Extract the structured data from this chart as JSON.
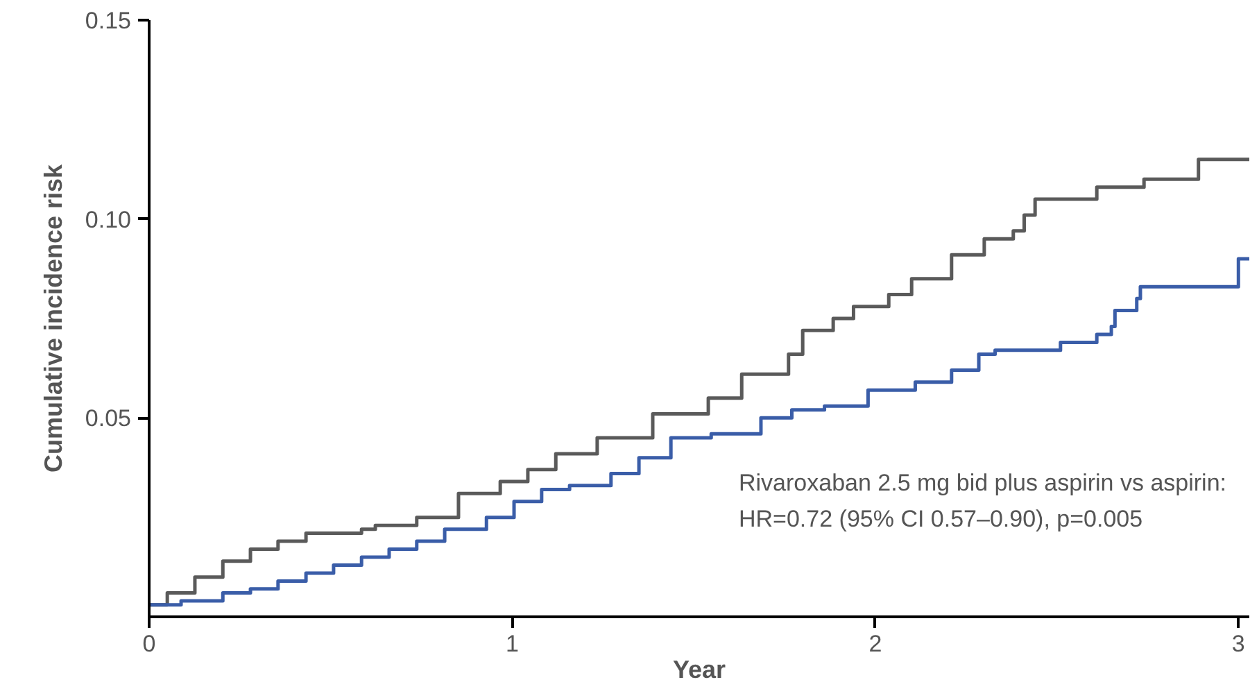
{
  "chart_data": {
    "type": "step",
    "xlabel": "Year",
    "ylabel": "Cumulative incidence risk",
    "xlim": [
      0,
      3.03
    ],
    "ylim": [
      0,
      0.15
    ],
    "xticks": [
      0,
      1,
      2,
      3
    ],
    "yticks": [
      {
        "value": 0.05,
        "label": "0.05"
      },
      {
        "value": 0.1,
        "label": "0.10"
      },
      {
        "value": 0.15,
        "label": "0.15"
      }
    ],
    "grid": false,
    "series": [
      {
        "color": "#5a5a5a",
        "x": [
          0,
          0.05,
          0.126,
          0.203,
          0.279,
          0.355,
          0.432,
          0.585,
          0.623,
          0.737,
          0.852,
          0.967,
          1.043,
          1.12,
          1.234,
          1.387,
          1.54,
          1.632,
          1.761,
          1.8,
          1.884,
          1.94,
          2.037,
          2.1,
          2.21,
          2.3,
          2.38,
          2.41,
          2.44,
          2.61,
          2.74,
          2.89,
          3.03
        ],
        "values": [
          0.003,
          0.006,
          0.01,
          0.014,
          0.017,
          0.019,
          0.021,
          0.022,
          0.023,
          0.025,
          0.031,
          0.034,
          0.037,
          0.041,
          0.045,
          0.051,
          0.055,
          0.061,
          0.066,
          0.072,
          0.075,
          0.078,
          0.081,
          0.085,
          0.091,
          0.095,
          0.097,
          0.101,
          0.105,
          0.108,
          0.11,
          0.115,
          0.115
        ]
      },
      {
        "color": "#3a5da8",
        "x": [
          0,
          0.088,
          0.203,
          0.279,
          0.355,
          0.432,
          0.508,
          0.585,
          0.661,
          0.737,
          0.814,
          0.929,
          1.005,
          1.081,
          1.158,
          1.272,
          1.349,
          1.437,
          1.548,
          1.685,
          1.77,
          1.86,
          1.98,
          2.11,
          2.21,
          2.285,
          2.33,
          2.51,
          2.61,
          2.65,
          2.66,
          2.72,
          2.73,
          3.0,
          3.03
        ],
        "values": [
          0.003,
          0.004,
          0.006,
          0.007,
          0.009,
          0.011,
          0.013,
          0.015,
          0.017,
          0.019,
          0.022,
          0.025,
          0.029,
          0.032,
          0.033,
          0.036,
          0.04,
          0.045,
          0.046,
          0.05,
          0.052,
          0.053,
          0.057,
          0.059,
          0.062,
          0.066,
          0.067,
          0.069,
          0.071,
          0.073,
          0.077,
          0.08,
          0.083,
          0.09,
          0.09
        ]
      }
    ],
    "annotations": [
      "Rivaroxaban 2.5 mg bid plus aspirin vs aspirin:",
      "HR=0.72 (95% CI 0.57–0.90), p=0.005"
    ]
  }
}
